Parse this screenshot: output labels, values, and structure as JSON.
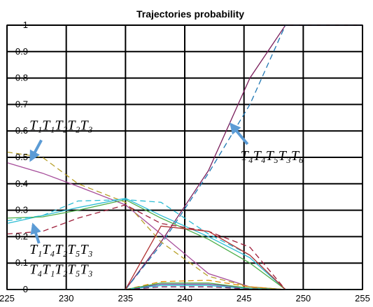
{
  "chart_data": {
    "type": "line",
    "title": "Trajectories probability",
    "xlabel": "",
    "ylabel": "",
    "xlim": [
      225,
      255
    ],
    "ylim": [
      0,
      1
    ],
    "xticks": [
      "225",
      "230",
      "235",
      "240",
      "245",
      "250",
      "255"
    ],
    "yticks": [
      "0",
      "0.1",
      "0.2",
      "0.3",
      "0.4",
      "0.5",
      "0.6",
      "0.7",
      "0.8",
      "0.9",
      "1"
    ],
    "grid": true,
    "series": [
      {
        "color": "#7a1f5c",
        "dash": false,
        "x": [
          225,
          235,
          238,
          242,
          245.5,
          248.5,
          255
        ],
        "y": [
          0,
          0,
          0.18,
          0.45,
          0.8,
          1,
          1
        ]
      },
      {
        "color": "#1f77b4",
        "dash": true,
        "x": [
          225,
          235,
          238,
          242,
          245.5,
          248.5,
          255
        ],
        "y": [
          0,
          0,
          0.17,
          0.44,
          0.7,
          1,
          1
        ]
      },
      {
        "color": "#a64d9a",
        "dash": false,
        "x": [
          225,
          228,
          231,
          235,
          238,
          242,
          245.5,
          248.5
        ],
        "y": [
          0.48,
          0.44,
          0.39,
          0.32,
          0.21,
          0.06,
          0.01,
          0
        ]
      },
      {
        "color": "#b8a02a",
        "dash": true,
        "x": [
          225,
          228,
          231,
          235,
          238,
          242,
          245.5,
          248.5
        ],
        "y": [
          0.52,
          0.5,
          0.4,
          0.33,
          0.18,
          0.05,
          0.01,
          0
        ]
      },
      {
        "color": "#2bbcd4",
        "dash": false,
        "x": [
          225,
          228,
          231,
          235,
          238,
          242,
          245.5,
          248.5
        ],
        "y": [
          0.25,
          0.28,
          0.31,
          0.345,
          0.28,
          0.2,
          0.12,
          0
        ]
      },
      {
        "color": "#4daf4a",
        "dash": false,
        "x": [
          225,
          228,
          231,
          235,
          238,
          242,
          245.5,
          248.5
        ],
        "y": [
          0.27,
          0.275,
          0.3,
          0.34,
          0.27,
          0.19,
          0.1,
          0
        ]
      },
      {
        "color": "#2bbcd4",
        "dash": true,
        "x": [
          225,
          228,
          231,
          235,
          238,
          242,
          245.5,
          248.5
        ],
        "y": [
          0.26,
          0.28,
          0.335,
          0.34,
          0.33,
          0.21,
          0.13,
          0
        ]
      },
      {
        "color": "#9e1f3a",
        "dash": true,
        "x": [
          225,
          228,
          231,
          235,
          238,
          242,
          245.5,
          248.5
        ],
        "y": [
          0.21,
          0.22,
          0.27,
          0.32,
          0.25,
          0.22,
          0.16,
          0
        ]
      },
      {
        "color": "#b03030",
        "dash": false,
        "x": [
          225,
          235,
          238,
          242,
          245.5,
          248.5
        ],
        "y": [
          0,
          0,
          0.24,
          0.22,
          0.13,
          0
        ]
      },
      {
        "color": "#6a3d9a",
        "dash": false,
        "x": [
          225,
          235,
          238,
          242,
          245.5,
          248.5,
          255
        ],
        "y": [
          0,
          0,
          0.02,
          0.02,
          0.005,
          0,
          0
        ]
      },
      {
        "color": "#e08a00",
        "dash": true,
        "x": [
          225,
          235,
          238,
          242,
          245.5,
          248.5,
          255
        ],
        "y": [
          0,
          0,
          0.03,
          0.035,
          0.01,
          0,
          0
        ]
      },
      {
        "color": "#4daf4a",
        "dash": false,
        "x": [
          225,
          235,
          238,
          242,
          245.5,
          248.5,
          255
        ],
        "y": [
          0,
          0,
          0.025,
          0.025,
          0.005,
          0,
          0
        ]
      },
      {
        "color": "#2bbcd4",
        "dash": false,
        "x": [
          225,
          235,
          238,
          242,
          245.5,
          248.5,
          255
        ],
        "y": [
          0,
          0,
          0.015,
          0.015,
          0.003,
          0,
          0
        ]
      },
      {
        "color": "#7a1f5c",
        "dash": true,
        "x": [
          225,
          235,
          238,
          242,
          245.5,
          248.5,
          255
        ],
        "y": [
          0,
          0,
          0.01,
          0.01,
          0.002,
          0,
          0
        ]
      }
    ],
    "annotations": [
      {
        "text": "T₁T₁T₂T₂T₃",
        "x": 226.9,
        "y": 0.605,
        "arrow_from": [
          227.9,
          0.565
        ],
        "arrow_to": [
          227.0,
          0.49
        ]
      },
      {
        "text": "T₄T₄T₅T₃T₆",
        "x": 244.7,
        "y": 0.49,
        "arrow_from": [
          245.3,
          0.55
        ],
        "arrow_to": [
          243.9,
          0.625
        ]
      },
      {
        "text": "T₁T₄T₂T₅T₃",
        "x": 226.9,
        "y": 0.135,
        "arrow_from": [
          227.7,
          0.175
        ],
        "arrow_to": [
          227.2,
          0.245
        ]
      },
      {
        "text": "T₄T₁T₂T₅T₃",
        "x": 226.9,
        "y": 0.06,
        "arrow_from": null,
        "arrow_to": null
      }
    ]
  }
}
